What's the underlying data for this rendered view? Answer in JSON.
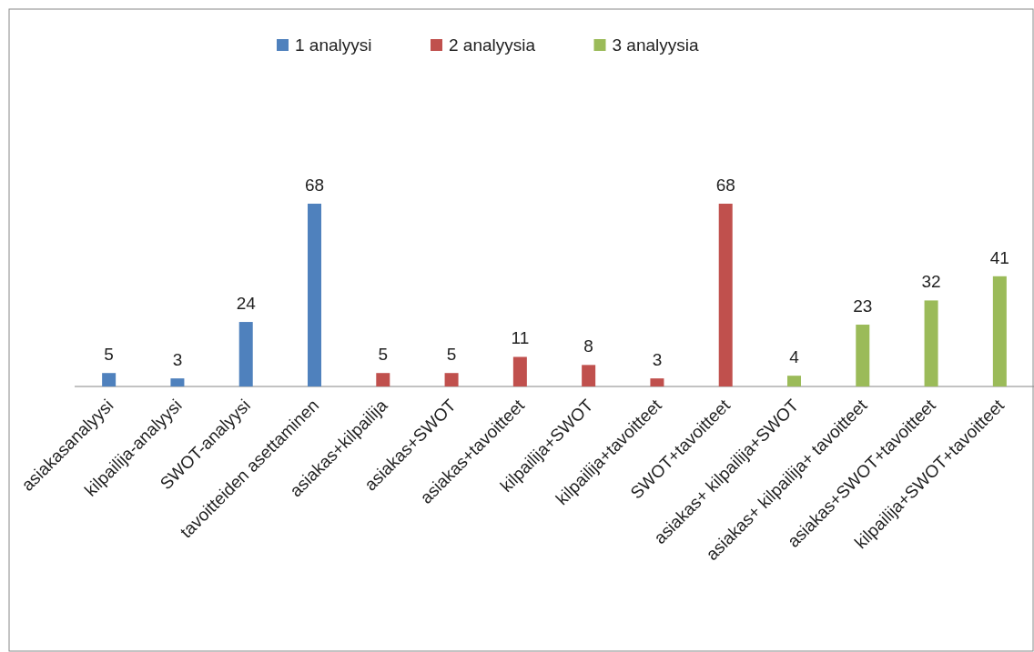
{
  "chart_data": {
    "type": "bar",
    "categories": [
      "asiakasanalyysi",
      "kilpailija-analyysi",
      "SWOT-analyysi",
      "tavoitteiden asettaminen",
      "asiakas+kilpailija",
      "asiakas+SWOT",
      "asiakas+tavoitteet",
      "kilpailija+SWOT",
      "kilpailija+tavoitteet",
      "SWOT+tavoitteet",
      "asiakas+ kilpailija+SWOT",
      "asiakas+ kilpailija+ tavoitteet",
      "asiakas+SWOT+tavoitteet",
      "kilpailija+SWOT+tavoitteet"
    ],
    "series": [
      {
        "name": "1 analyysi",
        "color": "#4f81bd",
        "values": [
          5,
          3,
          24,
          68,
          null,
          null,
          null,
          null,
          null,
          null,
          null,
          null,
          null,
          null
        ]
      },
      {
        "name": "2 analyysia",
        "color": "#c0504d",
        "values": [
          null,
          null,
          null,
          null,
          5,
          5,
          11,
          8,
          3,
          68,
          null,
          null,
          null,
          null
        ]
      },
      {
        "name": "3 analyysia",
        "color": "#9bbb59",
        "values": [
          null,
          null,
          null,
          null,
          null,
          null,
          null,
          null,
          null,
          null,
          4,
          23,
          32,
          41
        ]
      }
    ],
    "data_labels": true,
    "legend": "top"
  }
}
